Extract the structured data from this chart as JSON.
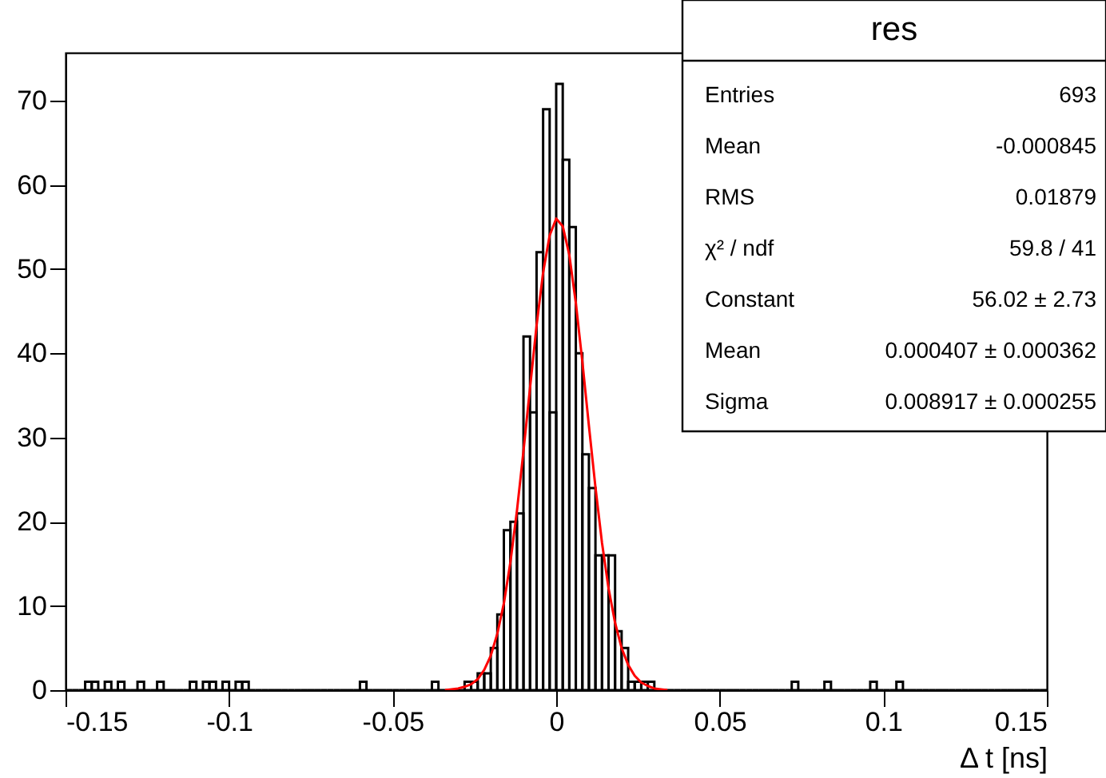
{
  "chart_data": {
    "type": "histogram",
    "title": "res",
    "xlabel": "Δ t [ns]",
    "color": "#000000",
    "bins": [
      -0.15,
      -0.148,
      -0.146,
      -0.144,
      -0.142,
      -0.14,
      -0.138,
      -0.136,
      -0.134,
      -0.132,
      -0.13,
      -0.128,
      -0.126,
      -0.124,
      -0.122,
      -0.12,
      -0.118,
      -0.116,
      -0.114,
      -0.112,
      -0.11,
      -0.108,
      -0.106,
      -0.104,
      -0.102,
      -0.1,
      -0.098,
      -0.096,
      -0.094,
      -0.092,
      -0.09,
      -0.088,
      -0.086,
      -0.084,
      -0.082,
      -0.08,
      -0.078,
      -0.076,
      -0.074,
      -0.072,
      -0.07,
      -0.068,
      -0.066,
      -0.064,
      -0.062,
      -0.06,
      -0.058,
      -0.056,
      -0.054,
      -0.052,
      -0.05,
      -0.048,
      -0.046,
      -0.044,
      -0.042,
      -0.04,
      -0.038,
      -0.036,
      -0.034,
      -0.032,
      -0.03,
      -0.028,
      -0.026,
      -0.024,
      -0.022,
      -0.02,
      -0.018,
      -0.016,
      -0.014,
      -0.012,
      -0.01,
      -0.008,
      -0.006,
      -0.004,
      -0.002,
      0,
      0.002,
      0.004,
      0.006,
      0.008,
      0.01,
      0.012,
      0.014,
      0.016,
      0.018,
      0.02,
      0.022,
      0.024,
      0.026,
      0.028,
      0.03,
      0.032,
      0.034,
      0.036,
      0.038,
      0.04,
      0.042,
      0.044,
      0.046,
      0.048,
      0.05,
      0.052,
      0.054,
      0.056,
      0.058,
      0.06,
      0.062,
      0.064,
      0.066,
      0.068,
      0.07,
      0.072,
      0.074,
      0.076,
      0.078,
      0.08,
      0.082,
      0.084,
      0.086,
      0.088,
      0.09,
      0.092,
      0.094,
      0.096,
      0.098,
      0.1,
      0.102,
      0.104,
      0.106,
      0.108,
      0.11,
      0.112,
      0.114,
      0.116,
      0.118,
      0.12,
      0.122,
      0.124,
      0.126,
      0.128,
      0.13,
      0.132,
      0.134,
      0.136,
      0.138,
      0.14,
      0.142,
      0.144,
      0.146,
      0.148,
      0.15
    ],
    "values": [
      0,
      0,
      0,
      1,
      1,
      0,
      1,
      0,
      1,
      0,
      0,
      1,
      0,
      0,
      1,
      0,
      0,
      0,
      0,
      1,
      0,
      1,
      1,
      0,
      1,
      0,
      1,
      1,
      0,
      0,
      0,
      0,
      0,
      0,
      0,
      0,
      0,
      0,
      0,
      0,
      0,
      0,
      0,
      0,
      0,
      1,
      0,
      0,
      0,
      0,
      0,
      0,
      0,
      0,
      0,
      0,
      1,
      0,
      0,
      0,
      0,
      1,
      1,
      2,
      2,
      5,
      9,
      19,
      20,
      21,
      42,
      33,
      52,
      69,
      33,
      72,
      63,
      55,
      40,
      28,
      24,
      16,
      16,
      16,
      7,
      5,
      1,
      1,
      1,
      1,
      0,
      0,
      0,
      0,
      0,
      0,
      0,
      0,
      0,
      0,
      0,
      0,
      0,
      0,
      0,
      0,
      0,
      0,
      0,
      0,
      0,
      1,
      0,
      0,
      0,
      0,
      1,
      0,
      0,
      0,
      0,
      0,
      0,
      1,
      0,
      0,
      0,
      1,
      0,
      0,
      0,
      0,
      0,
      0,
      0,
      0,
      0,
      0,
      0,
      0,
      0,
      0,
      0,
      0,
      0,
      0,
      0,
      0,
      0,
      0
    ],
    "series": [
      {
        "type": "line",
        "color": "#ff0000",
        "x": [
          -0.034,
          -0.032,
          -0.03,
          -0.028,
          -0.026,
          -0.024,
          -0.022,
          -0.02,
          -0.018,
          -0.016,
          -0.014,
          -0.012,
          -0.01,
          -0.008,
          -0.006,
          -0.004,
          -0.002,
          0,
          0.002,
          0.004,
          0.006,
          0.008,
          0.01,
          0.012,
          0.014,
          0.016,
          0.018,
          0.02,
          0.022,
          0.024,
          0.026,
          0.028,
          0.03,
          0.032,
          0.034
        ],
        "values": [
          0.0,
          0.1,
          0.2,
          0.4,
          0.7,
          1.3,
          2.4,
          4.1,
          6.7,
          10.3,
          15.2,
          21.3,
          28.4,
          35.9,
          43.3,
          49.6,
          54.0,
          56.0,
          55.1,
          51.7,
          46.0,
          39.0,
          31.4,
          24.1,
          17.5,
          12.1,
          8.0,
          5.0,
          3.0,
          1.7,
          0.9,
          0.5,
          0.2,
          0.1,
          0.0
        ]
      }
    ],
    "annotations": [
      "Entries",
      "693",
      "Mean",
      "-0.000845",
      "RMS",
      "0.01879",
      "χ² / ndf",
      "59.8 / 41",
      "Constant",
      "56.02 ± 2.73",
      "Mean",
      "0.000407 ± 0.000362",
      "Sigma",
      "0.008917 ± 0.000255"
    ],
    "xlim": [
      -0.15,
      0.15
    ],
    "ylim": [
      0,
      75.7
    ],
    "xticks": [
      -0.15,
      -0.1,
      -0.05,
      0,
      0.05,
      0.1,
      0.15
    ],
    "yticks": [
      0,
      10,
      20,
      30,
      40,
      50,
      60,
      70
    ],
    "grid": false
  }
}
